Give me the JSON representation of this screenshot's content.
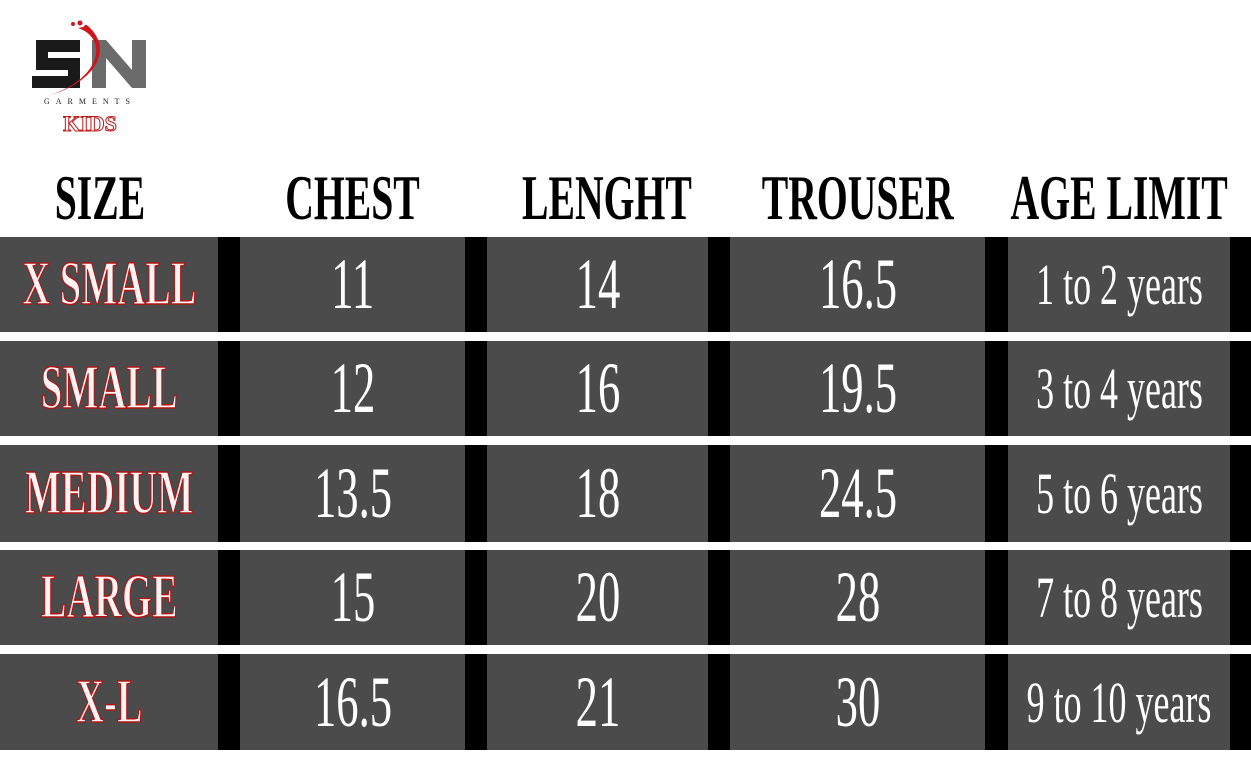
{
  "brand": {
    "name": "SN",
    "subtitle": "GARMENTS",
    "line": "KIDS",
    "colors": {
      "s": "#1a1a1a",
      "n": "#6b6b6b",
      "swoosh": "#d0141b"
    }
  },
  "headers": [
    "SIZE",
    "CHEST",
    "LENGHT",
    "TROUSER",
    "AGE LIMIT"
  ],
  "rows": [
    [
      "X SMALL",
      "11",
      "14",
      "16.5",
      "1 to 2 years"
    ],
    [
      "SMALL",
      "12",
      "16",
      "19.5",
      "3 to 4 years"
    ],
    [
      "MEDIUM",
      "13.5",
      "18",
      "24.5",
      "5 to 6 years"
    ],
    [
      "LARGE",
      "15",
      "20",
      "28",
      "7 to 8 years"
    ],
    [
      "X-L",
      "16.5",
      "21",
      "30",
      "9 to 10 years"
    ]
  ],
  "colors": {
    "cell": "#4b4b4b",
    "divider": "#000000",
    "size_outline": "#b01515"
  }
}
